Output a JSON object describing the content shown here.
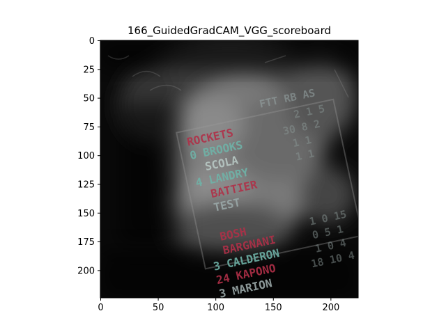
{
  "figure": {
    "title": "166_GuidedGradCAM_VGG_scoreboard",
    "x_ticks": [
      "0",
      "50",
      "100",
      "150",
      "200"
    ],
    "y_ticks": [
      "0",
      "25",
      "50",
      "75",
      "100",
      "125",
      "150",
      "175",
      "200"
    ],
    "x_range": [
      0,
      224
    ],
    "y_range": [
      0,
      224
    ]
  },
  "scoreboard": {
    "header": "ROCKETS",
    "players": [
      "0 BROOKS",
      "SCOLA",
      "4 LANDRY",
      "BATTIER",
      "TEST"
    ],
    "heat_players": [
      "BOSH",
      "BARGNANI",
      "3 CALDERON",
      "24 KAPONO",
      "3 MARION"
    ],
    "columns": "FTT RB AS",
    "colors": {
      "text_red": "#b03048",
      "text_teal": "#6fb3a8",
      "background": "#0a0a0a"
    }
  }
}
